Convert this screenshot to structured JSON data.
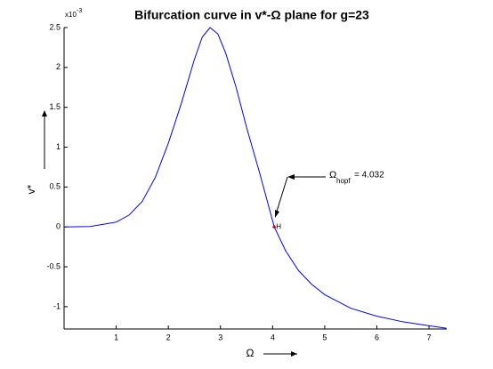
{
  "chart_data": {
    "type": "line",
    "title": "Bifurcation curve in v*-Ω plane for g=23",
    "x_label": "Ω",
    "y_label": "v*",
    "y_multiplier": {
      "base": "x10",
      "exponent": "-3"
    },
    "x": [
      0,
      0.5,
      1,
      1.25,
      1.5,
      1.75,
      2,
      2.25,
      2.5,
      2.65,
      2.8,
      2.95,
      3.1,
      3.3,
      3.5,
      3.75,
      4.032,
      4.25,
      4.5,
      4.75,
      5,
      5.5,
      6,
      6.5,
      7,
      7.33
    ],
    "series": [
      {
        "color": "#0000ff",
        "values": [
          0,
          0.005,
          0.06,
          0.15,
          0.32,
          0.62,
          1.05,
          1.55,
          2.1,
          2.38,
          2.5,
          2.42,
          2.18,
          1.75,
          1.25,
          0.68,
          0,
          -0.3,
          -0.55,
          -0.72,
          -0.85,
          -1.02,
          -1.12,
          -1.19,
          -1.24,
          -1.27
        ]
      }
    ],
    "xlim": [
      0,
      7.34
    ],
    "ylim": [
      -1.28,
      2.5
    ],
    "xticks": [
      1,
      2,
      3,
      4,
      5,
      6,
      7
    ],
    "yticks": [
      -1,
      -0.5,
      0,
      0.5,
      1,
      1.5,
      2,
      2.5
    ],
    "hopf_point": {
      "x": 4.032,
      "y": 0,
      "label": "H",
      "color": "#cc0000"
    },
    "annotation": {
      "symbol": "Ω",
      "subscript": "hopf",
      "text": "= 4.032"
    }
  }
}
